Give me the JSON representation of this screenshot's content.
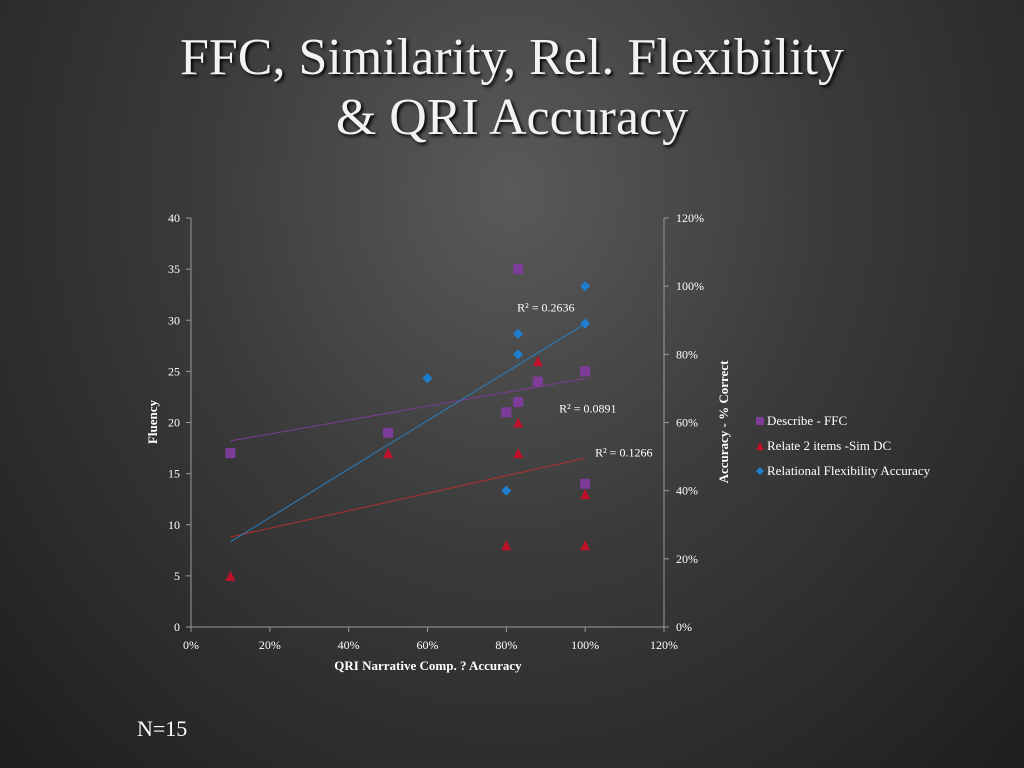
{
  "slide": {
    "title_line1": "FFC, Similarity, Rel. Flexibility",
    "title_line2": "& QRI Accuracy",
    "footnote": "N=15"
  },
  "chart_data": {
    "type": "scatter",
    "xlabel": "QRI Narrative Comp. ? Accuracy",
    "ylabel_left": "Fluency",
    "ylabel_right": "Accuracy  - % Correct",
    "x_ticks": [
      "0%",
      "20%",
      "40%",
      "60%",
      "80%",
      "100%",
      "120%"
    ],
    "y_left_ticks": [
      "0",
      "5",
      "10",
      "15",
      "20",
      "25",
      "30",
      "35",
      "40"
    ],
    "y_right_ticks": [
      "0%",
      "20%",
      "40%",
      "60%",
      "80%",
      "100%",
      "120%"
    ],
    "xlim": [
      0,
      1.2
    ],
    "ylim_left": [
      0,
      40
    ],
    "ylim_right": [
      0,
      1.2
    ],
    "legend_position": "right",
    "series": [
      {
        "name": "Describe - FFC",
        "axis": "left",
        "marker": "square",
        "color": "#7d3c98",
        "trend_color": "#7d3c98",
        "r2": "R² = 0.0891",
        "points": [
          [
            0.1,
            17
          ],
          [
            0.5,
            19
          ],
          [
            0.8,
            21
          ],
          [
            0.83,
            22
          ],
          [
            0.83,
            35
          ],
          [
            0.88,
            24
          ],
          [
            1.0,
            25
          ],
          [
            1.0,
            14
          ]
        ],
        "trend": [
          [
            0.1,
            18.2
          ],
          [
            1.0,
            24.3
          ]
        ]
      },
      {
        "name": "Relate 2 items -Sim DC",
        "axis": "left",
        "marker": "triangle",
        "color": "#c0102a",
        "trend_color": "#b0302a",
        "r2": "R² = 0.1266",
        "points": [
          [
            0.1,
            5
          ],
          [
            0.5,
            17
          ],
          [
            0.8,
            8
          ],
          [
            0.83,
            17
          ],
          [
            0.83,
            20
          ],
          [
            0.88,
            26
          ],
          [
            1.0,
            13
          ],
          [
            1.0,
            8
          ]
        ],
        "trend": [
          [
            0.1,
            8.8
          ],
          [
            1.0,
            16.5
          ]
        ]
      },
      {
        "name": "Relational Flexibility Accuracy",
        "axis": "right",
        "marker": "diamond",
        "color": "#1e7fd0",
        "trend_color": "#2a7fc0",
        "r2": "R² = 0.2636",
        "points": [
          [
            0.6,
            0.73
          ],
          [
            0.8,
            0.4
          ],
          [
            0.83,
            0.86
          ],
          [
            0.83,
            0.8
          ],
          [
            1.0,
            1.0
          ],
          [
            1.0,
            0.89
          ]
        ],
        "trend": [
          [
            0.1,
            0.25
          ],
          [
            1.0,
            0.89
          ]
        ]
      }
    ]
  }
}
